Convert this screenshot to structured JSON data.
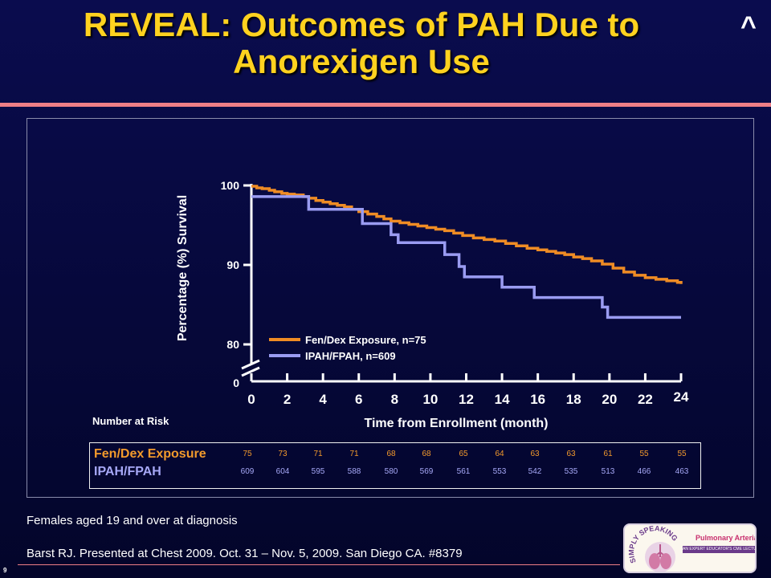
{
  "slide": {
    "title": "REVEAL: Outcomes of PAH Due to Anorexigen Use",
    "caret": "^",
    "number": "9",
    "footnote": "Females aged 19 and over at diagnosis",
    "citation": "Barst RJ. Presented at Chest 2009. Oct. 31 – Nov. 5, 2009. San Diego CA. #8379"
  },
  "logo": {
    "arc_text": "SIMPLY SPEAKING",
    "line1": "Pulmonary Arterial Hypertension",
    "line2": "AN EXPERT EDUCATOR'S CME LECTURE SERIES"
  },
  "colors": {
    "fen": "#ef8c24",
    "ipah": "#9a9cf2",
    "title": "#ffd21f",
    "accent_rule": "#ef7f87"
  },
  "chart_data": {
    "type": "line",
    "step": true,
    "xlabel": "Time from Enrollment (month)",
    "ylabel": "Percentage (%) Survival",
    "xlim": [
      0,
      24
    ],
    "ylim": [
      80,
      100
    ],
    "axis_break": true,
    "x_ticks": [
      "0",
      "2",
      "4",
      "6",
      "8",
      "10",
      "12",
      "14",
      "16",
      "18",
      "20",
      "22",
      "24"
    ],
    "y_ticks": [
      "100",
      "90",
      "80"
    ],
    "y_zero_tick": "0",
    "legend_position": "bottom-left",
    "series": [
      {
        "name": "Fen/Dex Exposure, n=75",
        "color": "#ef8c24",
        "x": [
          0,
          0.3,
          0.6,
          1.0,
          1.3,
          1.7,
          2.0,
          2.4,
          2.9,
          3.2,
          3.6,
          4.0,
          4.4,
          4.8,
          5.2,
          5.6,
          6.0,
          6.5,
          7.0,
          7.4,
          7.8,
          8.3,
          8.8,
          9.3,
          9.8,
          10.3,
          10.8,
          11.3,
          11.8,
          12.4,
          13.0,
          13.6,
          14.2,
          14.8,
          15.4,
          16.0,
          16.5,
          17.0,
          17.5,
          18.0,
          18.5,
          19.0,
          19.6,
          20.2,
          20.8,
          21.4,
          22.0,
          22.6,
          23.2,
          23.8,
          24.0
        ],
        "y": [
          99.9,
          99.7,
          99.6,
          99.4,
          99.2,
          99.0,
          98.9,
          98.8,
          98.6,
          98.4,
          98.1,
          97.9,
          97.7,
          97.5,
          97.3,
          97.0,
          96.7,
          96.4,
          96.1,
          95.8,
          95.5,
          95.3,
          95.1,
          94.9,
          94.7,
          94.5,
          94.3,
          94.0,
          93.7,
          93.4,
          93.2,
          93.0,
          92.7,
          92.4,
          92.1,
          91.9,
          91.7,
          91.5,
          91.3,
          91.0,
          90.8,
          90.5,
          90.1,
          89.6,
          89.1,
          88.7,
          88.4,
          88.2,
          88.0,
          87.8,
          87.6
        ]
      },
      {
        "name": "IPAH/FPAH, n=609",
        "color": "#9a9cf2",
        "x": [
          0,
          3.2,
          6.2,
          7.8,
          8.2,
          10.8,
          11.6,
          11.9,
          14.0,
          15.8,
          19.6,
          19.9,
          24.0
        ],
        "y": [
          98.6,
          97.0,
          95.2,
          93.8,
          92.8,
          91.3,
          89.8,
          88.5,
          87.2,
          85.9,
          84.7,
          83.4,
          83.4
        ]
      }
    ]
  },
  "risk_table": {
    "title": "Number at Risk",
    "rows": [
      {
        "name": "Fen/Dex Exposure",
        "values": [
          "75",
          "73",
          "71",
          "71",
          "68",
          "68",
          "65",
          "64",
          "63",
          "63",
          "61",
          "55",
          "55"
        ]
      },
      {
        "name": "IPAH/FPAH",
        "values": [
          "609",
          "604",
          "595",
          "588",
          "580",
          "569",
          "561",
          "553",
          "542",
          "535",
          "513",
          "466",
          "463"
        ]
      }
    ]
  }
}
